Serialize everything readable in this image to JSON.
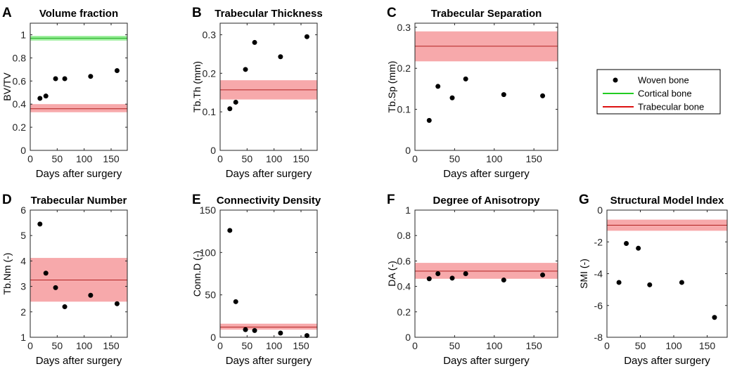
{
  "chart_data": [
    {
      "type": "scatter",
      "panel": "A",
      "title": "Volume fraction",
      "xlabel": "Days after surgery",
      "ylabel": "BV/TV",
      "xlim": [
        0,
        180
      ],
      "ylim": [
        0,
        1.1
      ],
      "xticks": [
        0,
        50,
        100,
        150
      ],
      "xtick_labels": [
        "0",
        "50",
        "100",
        "150"
      ],
      "yticks": [
        0,
        0.2,
        0.4,
        0.6,
        0.8,
        1
      ],
      "ytick_labels": [
        "0",
        "0.2",
        "0.4",
        "0.6",
        "0.8",
        "1"
      ],
      "woven": {
        "x": [
          18,
          29,
          47,
          64,
          112,
          161
        ],
        "y": [
          0.45,
          0.47,
          0.62,
          0.62,
          0.64,
          0.69
        ]
      },
      "cortical": {
        "mean": 0.97,
        "low": 0.95,
        "high": 0.99
      },
      "trabecular": {
        "mean": 0.36,
        "low": 0.33,
        "high": 0.4
      }
    },
    {
      "type": "scatter",
      "panel": "B",
      "title": "Trabecular Thickness",
      "xlabel": "Days after surgery",
      "ylabel": "Tb.Th (mm)",
      "xlim": [
        0,
        180
      ],
      "ylim": [
        0,
        0.33
      ],
      "xticks": [
        0,
        50,
        100,
        150
      ],
      "xtick_labels": [
        "0",
        "50",
        "100",
        "150"
      ],
      "yticks": [
        0,
        0.1,
        0.2,
        0.3
      ],
      "ytick_labels": [
        "0",
        "0.1",
        "0.2",
        "0.3"
      ],
      "woven": {
        "x": [
          18,
          29,
          47,
          64,
          112,
          161
        ],
        "y": [
          0.108,
          0.125,
          0.21,
          0.28,
          0.243,
          0.295
        ]
      },
      "trabecular": {
        "mean": 0.157,
        "low": 0.132,
        "high": 0.182
      }
    },
    {
      "type": "scatter",
      "panel": "C",
      "title": "Trabecular Separation",
      "xlabel": "Days after surgery",
      "ylabel": "Tb.Sp (mm)",
      "xlim": [
        0,
        180
      ],
      "ylim": [
        0,
        0.31
      ],
      "xticks": [
        0,
        50,
        100,
        150
      ],
      "xtick_labels": [
        "0",
        "50",
        "100",
        "150"
      ],
      "yticks": [
        0,
        0.1,
        0.2,
        0.3
      ],
      "ytick_labels": [
        "0",
        "0.1",
        "0.2",
        "0.3"
      ],
      "woven": {
        "x": [
          18,
          29,
          47,
          64,
          112,
          161
        ],
        "y": [
          0.073,
          0.156,
          0.128,
          0.174,
          0.136,
          0.133
        ]
      },
      "trabecular": {
        "mean": 0.254,
        "low": 0.217,
        "high": 0.29
      }
    },
    {
      "type": "scatter",
      "panel": "D",
      "title": "Trabecular Number",
      "xlabel": "Days after surgery",
      "ylabel": "Tb.Nm (-)",
      "xlim": [
        0,
        180
      ],
      "ylim": [
        1,
        6
      ],
      "xticks": [
        0,
        50,
        100,
        150
      ],
      "xtick_labels": [
        "0",
        "50",
        "100",
        "150"
      ],
      "yticks": [
        1,
        2,
        3,
        4,
        5,
        6
      ],
      "ytick_labels": [
        "1",
        "2",
        "3",
        "4",
        "5",
        "6"
      ],
      "woven": {
        "x": [
          18,
          29,
          47,
          64,
          112,
          161
        ],
        "y": [
          5.45,
          3.52,
          2.95,
          2.2,
          2.65,
          2.32
        ]
      },
      "trabecular": {
        "mean": 3.25,
        "low": 2.4,
        "high": 4.12
      }
    },
    {
      "type": "scatter",
      "panel": "E",
      "title": "Connectivity Density",
      "xlabel": "Days after surgery",
      "ylabel": "Conn.D (-)",
      "xlim": [
        0,
        180
      ],
      "ylim": [
        0,
        150
      ],
      "xticks": [
        0,
        50,
        100,
        150
      ],
      "xtick_labels": [
        "0",
        "50",
        "100",
        "150"
      ],
      "yticks": [
        0,
        50,
        100,
        150
      ],
      "ytick_labels": [
        "0",
        "50",
        "100",
        "150"
      ],
      "woven": {
        "x": [
          18,
          29,
          47,
          64,
          112,
          161
        ],
        "y": [
          126,
          42,
          9,
          8,
          5,
          2
        ]
      },
      "trabecular": {
        "mean": 12,
        "low": 9,
        "high": 16
      }
    },
    {
      "type": "scatter",
      "panel": "F",
      "title": "Degree of Anisotropy",
      "xlabel": "Days after surgery",
      "ylabel": "DA (-)",
      "xlim": [
        0,
        180
      ],
      "ylim": [
        0,
        1
      ],
      "xticks": [
        0,
        50,
        100,
        150
      ],
      "xtick_labels": [
        "0",
        "50",
        "100",
        "150"
      ],
      "yticks": [
        0,
        0.2,
        0.4,
        0.6,
        0.8,
        1
      ],
      "ytick_labels": [
        "0",
        "0.2",
        "0.4",
        "0.6",
        "0.8",
        "1"
      ],
      "woven": {
        "x": [
          18,
          29,
          47,
          64,
          112,
          161
        ],
        "y": [
          0.46,
          0.5,
          0.465,
          0.5,
          0.45,
          0.49
        ]
      },
      "trabecular": {
        "mean": 0.52,
        "low": 0.46,
        "high": 0.585
      }
    },
    {
      "type": "scatter",
      "panel": "G",
      "title": "Structural Model Index",
      "xlabel": "Days after surgery",
      "ylabel": "SMI (-)",
      "xlim": [
        0,
        180
      ],
      "ylim": [
        -8,
        0
      ],
      "xticks": [
        0,
        50,
        100,
        150
      ],
      "xtick_labels": [
        "0",
        "50",
        "100",
        "150"
      ],
      "yticks": [
        -8,
        -6,
        -4,
        -2,
        0
      ],
      "ytick_labels": [
        "-8",
        "-6",
        "-4",
        "-2",
        "0"
      ],
      "woven": {
        "x": [
          18,
          29,
          47,
          64,
          112,
          161
        ],
        "y": [
          -4.55,
          -2.1,
          -2.4,
          -4.7,
          -4.55,
          -6.75
        ]
      },
      "trabecular": {
        "mean": -0.95,
        "low": -1.3,
        "high": -0.6
      }
    }
  ],
  "legend": {
    "items": [
      {
        "label": "Woven bone",
        "kind": "marker",
        "color": "#000000"
      },
      {
        "label": "Cortical bone",
        "kind": "line",
        "color": "#22cc22"
      },
      {
        "label": "Trabecular bone",
        "kind": "line",
        "color": "#dd1111"
      }
    ]
  },
  "colors": {
    "trabecular_band": "#f7a9ab",
    "trabecular_line": "#b22222",
    "cortical_band": "#98ee98",
    "cortical_line": "#1faa1f",
    "marker": "#000000"
  }
}
